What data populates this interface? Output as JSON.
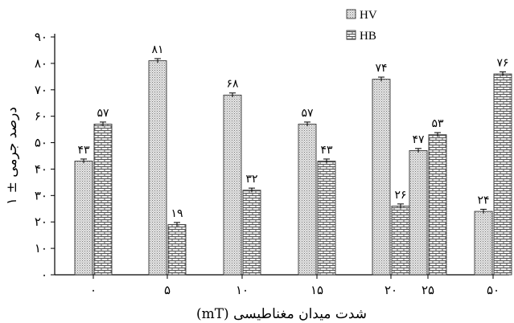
{
  "chart_data": {
    "type": "bar",
    "xlabel": "شدت میدان مغناطیسی (mT)",
    "ylabel": "درصد جرمی ± ۱",
    "categories": [
      "۰",
      "۵",
      "۱۰",
      "۱۵",
      "۲۰",
      "۲۵",
      "۵۰"
    ],
    "series": [
      {
        "name": "HV",
        "values": [
          43,
          81,
          68,
          57,
          74,
          47,
          24
        ],
        "value_labels": [
          "۴۳",
          "۸۱",
          "۶۸",
          "۵۷",
          "۷۴",
          "۴۷",
          "۲۴"
        ],
        "errors": [
          0.8,
          0.8,
          0.8,
          0.8,
          0.8,
          0.8,
          0.8
        ]
      },
      {
        "name": "HB",
        "values": [
          57,
          19,
          32,
          43,
          26,
          53,
          76
        ],
        "value_labels": [
          "۵۷",
          "۱۹",
          "۳۲",
          "۴۳",
          "۲۶",
          "۵۳",
          "۷۶"
        ],
        "errors": [
          0.8,
          0.8,
          0.8,
          0.8,
          0.8,
          0.8,
          0.8
        ]
      }
    ],
    "yticks": [
      0,
      10,
      20,
      30,
      40,
      50,
      60,
      70,
      80,
      90
    ],
    "ytick_labels": [
      "۰",
      "۱۰",
      "۲۰",
      "۳۰",
      "۴۰",
      "۵۰",
      "۶۰",
      "۷۰",
      "۸۰",
      "۹۰"
    ],
    "ylim": [
      0,
      90
    ],
    "grid": false,
    "legend": "top-right"
  }
}
